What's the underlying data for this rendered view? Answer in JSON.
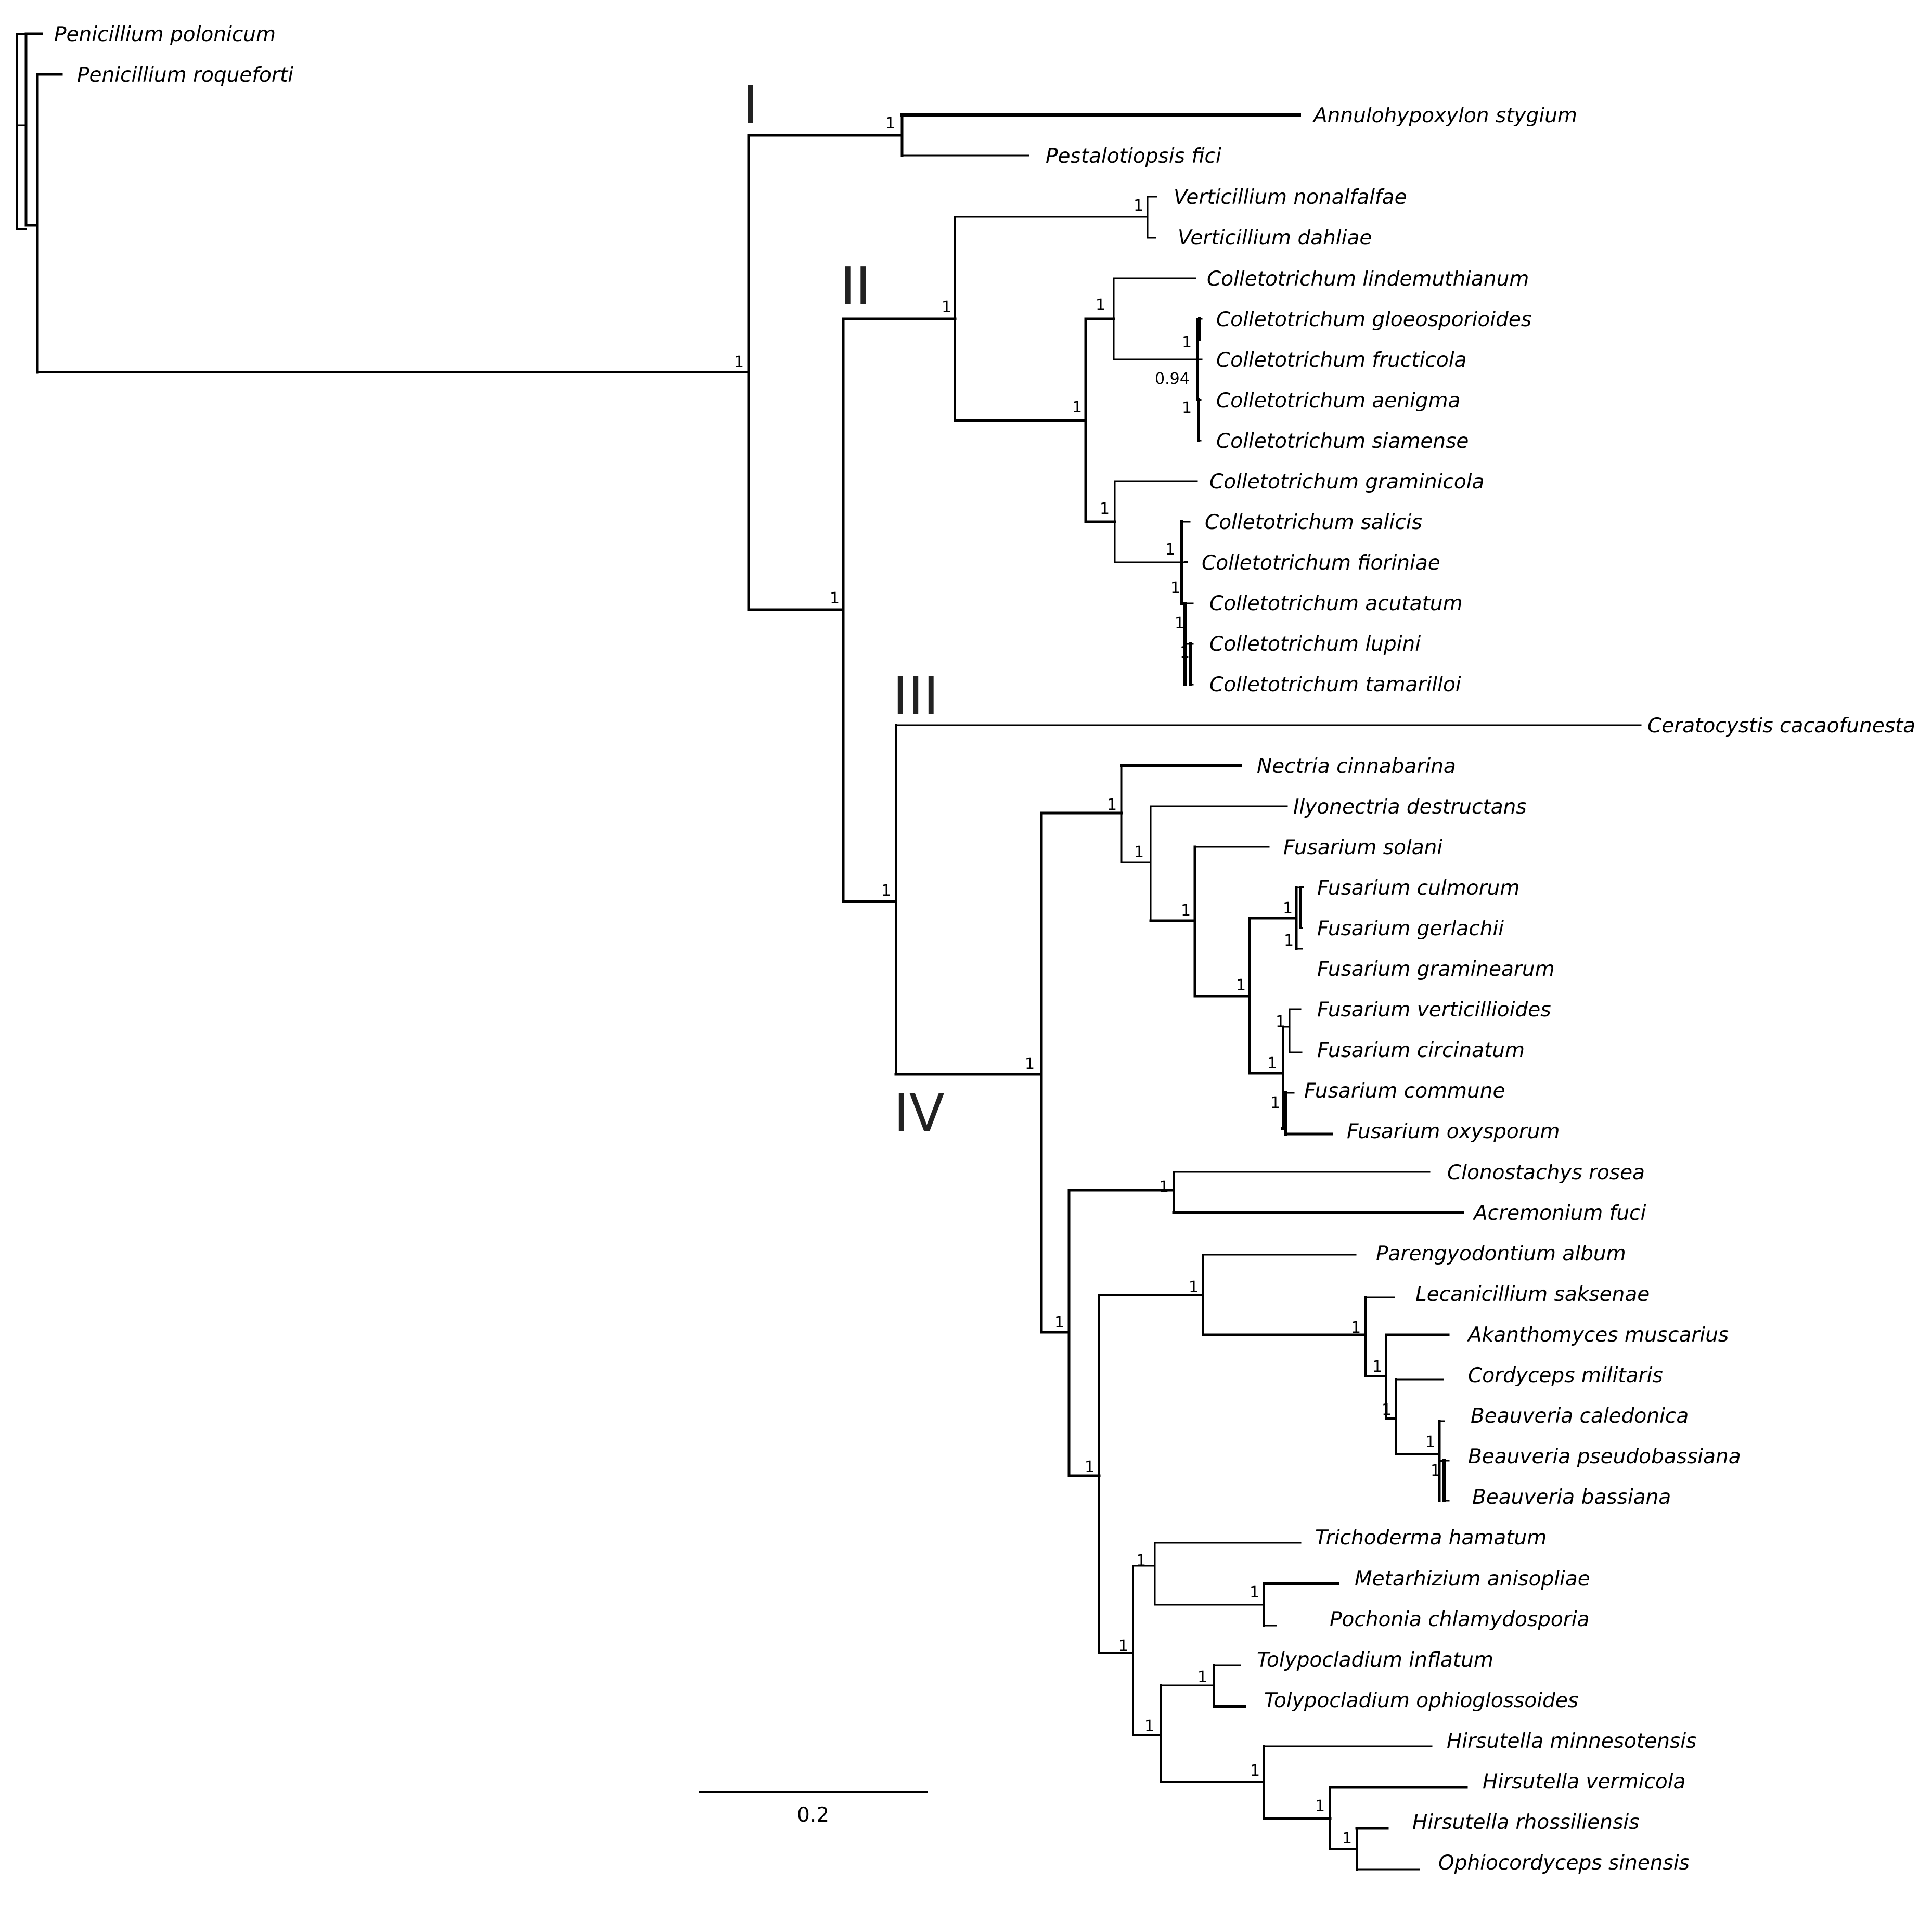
{
  "tree": {
    "outgroup": [
      "Penicillium polonicum",
      "Penicillium roqueforti"
    ],
    "clades": {
      "I": [
        "Annulohypoxylon stygium",
        "Pestalotiopsis fici"
      ],
      "II": [
        "Verticillium nonalfalfae",
        "Verticillium dahliae",
        "Colletotrichum lindemuthianum",
        "Colletotrichum gloeosporioides",
        "Colletotrichum fructicola",
        "Colletotrichum aenigma",
        "Colletotrichum siamense",
        "Colletotrichum graminicola",
        "Colletotrichum salicis",
        "Colletotrichum fioriniae",
        "Colletotrichum acutatum",
        "Colletotrichum lupini",
        "Colletotrichum tamarilloi"
      ],
      "III": [
        "Ceratocystis cacaofunesta"
      ],
      "IV": [
        "Nectria cinnabarina",
        "Ilyonectria destructans",
        "Fusarium solani",
        "Fusarium culmorum",
        "Fusarium gerlachii",
        "Fusarium graminearum",
        "Fusarium verticillioides",
        "Fusarium circinatum",
        "Fusarium commune",
        "Fusarium oxysporum",
        "Clonostachys rosea",
        "Acremonium fuci",
        "Parengyodontium album",
        "Lecanicillium saksenae",
        "Akanthomyces muscarius",
        "Cordyceps militaris",
        "Beauveria caledonica",
        "Beauveria pseudobassiana",
        "Beauveria bassiana",
        "Trichoderma hamatum",
        "Metarhizium anisopliae",
        "Pochonia chlamydosporia",
        "Tolypocladium inflatum",
        "Tolypocladium ophioglossoides",
        "Hirsutella minnesotensis",
        "Hirsutella vermicola",
        "Hirsutella rhossiliensis",
        "Ophiocordyceps sinensis"
      ]
    },
    "support_value_common": "1",
    "support_value_fructicola": "0.94",
    "scale_bar": "0.2"
  },
  "colors": {
    "branch": "#000000",
    "clade_label": "#222222",
    "background": "#ffffff"
  }
}
